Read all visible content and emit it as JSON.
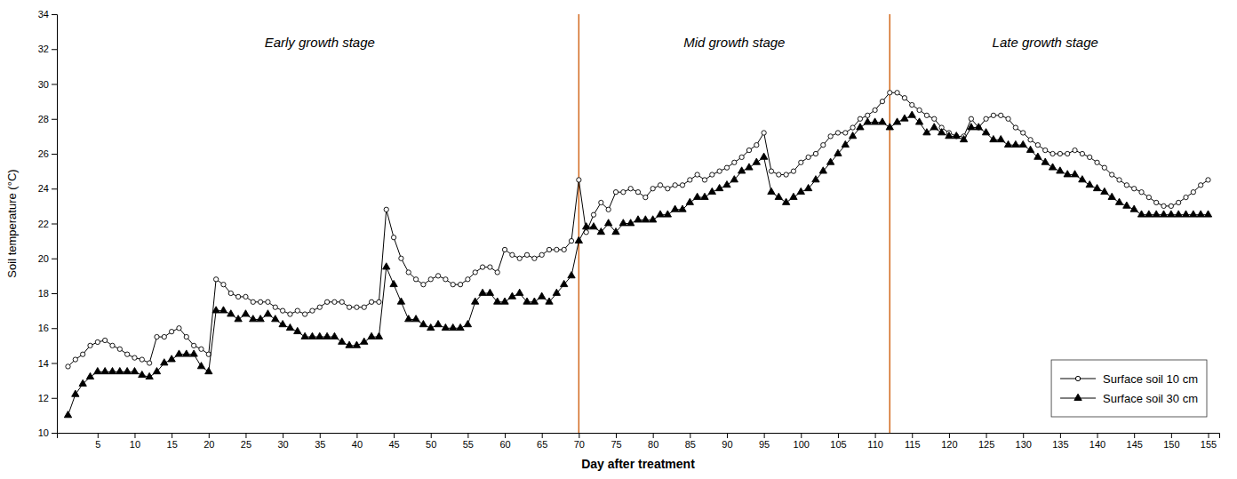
{
  "chart_data": {
    "type": "line",
    "x_label": "Day after treatment",
    "y_label": "Soil temperature (°C)",
    "x": [
      1,
      2,
      3,
      4,
      5,
      6,
      7,
      8,
      9,
      10,
      11,
      12,
      13,
      14,
      15,
      16,
      17,
      18,
      19,
      20,
      21,
      22,
      23,
      24,
      25,
      26,
      27,
      28,
      29,
      30,
      31,
      32,
      33,
      34,
      35,
      36,
      37,
      38,
      39,
      40,
      41,
      42,
      43,
      44,
      45,
      46,
      47,
      48,
      49,
      50,
      51,
      52,
      53,
      54,
      55,
      56,
      57,
      58,
      59,
      60,
      61,
      62,
      63,
      64,
      65,
      66,
      67,
      68,
      69,
      70,
      71,
      72,
      73,
      74,
      75,
      76,
      77,
      78,
      79,
      80,
      81,
      82,
      83,
      84,
      85,
      86,
      87,
      88,
      89,
      90,
      91,
      92,
      93,
      94,
      95,
      96,
      97,
      98,
      99,
      100,
      101,
      102,
      103,
      104,
      105,
      106,
      107,
      108,
      109,
      110,
      111,
      112,
      113,
      114,
      115,
      116,
      117,
      118,
      119,
      120,
      121,
      122,
      123,
      124,
      125,
      126,
      127,
      128,
      129,
      130,
      131,
      132,
      133,
      134,
      135,
      136,
      137,
      138,
      139,
      140,
      141,
      142,
      143,
      144,
      145,
      146,
      147,
      148,
      149,
      150,
      151,
      152,
      153,
      154,
      155
    ],
    "series": [
      {
        "name": "Surface soil 10 cm",
        "color": "#000000",
        "marker": "open-circle",
        "values": [
          13.8,
          14.2,
          14.5,
          15.0,
          15.2,
          15.3,
          15.0,
          14.8,
          14.5,
          14.3,
          14.2,
          14.0,
          15.5,
          15.5,
          15.8,
          16.0,
          15.5,
          15.0,
          14.8,
          14.5,
          18.8,
          18.5,
          18.0,
          17.8,
          17.8,
          17.5,
          17.5,
          17.5,
          17.2,
          17.0,
          16.8,
          17.0,
          16.8,
          17.0,
          17.2,
          17.5,
          17.5,
          17.5,
          17.2,
          17.2,
          17.2,
          17.5,
          17.5,
          22.8,
          21.2,
          20.0,
          19.2,
          18.8,
          18.5,
          18.8,
          19.0,
          18.8,
          18.5,
          18.5,
          18.8,
          19.2,
          19.5,
          19.5,
          19.2,
          20.5,
          20.2,
          20.0,
          20.2,
          20.0,
          20.2,
          20.5,
          20.5,
          20.5,
          21.0,
          24.5,
          21.5,
          22.5,
          23.2,
          22.8,
          23.8,
          23.8,
          24.0,
          23.8,
          23.5,
          24.0,
          24.2,
          24.0,
          24.2,
          24.2,
          24.5,
          24.8,
          24.5,
          24.8,
          25.0,
          25.2,
          25.5,
          25.8,
          26.2,
          26.5,
          27.2,
          25.0,
          24.8,
          24.8,
          25.0,
          25.5,
          25.8,
          26.0,
          26.5,
          27.0,
          27.2,
          27.2,
          27.5,
          28.0,
          28.2,
          28.5,
          29.0,
          29.5,
          29.5,
          29.2,
          28.8,
          28.5,
          28.2,
          28.0,
          27.5,
          27.2,
          27.0,
          27.0,
          28.0,
          27.5,
          28.0,
          28.2,
          28.2,
          28.0,
          27.5,
          27.2,
          26.8,
          26.5,
          26.2,
          26.0,
          26.0,
          26.0,
          26.2,
          26.0,
          25.8,
          25.5,
          25.2,
          24.8,
          24.5,
          24.2,
          24.0,
          23.8,
          23.5,
          23.2,
          23.0,
          23.0,
          23.2,
          23.5,
          23.8,
          24.2,
          24.5
        ]
      },
      {
        "name": "Surface soil 30 cm",
        "color": "#000000",
        "marker": "triangle",
        "values": [
          11.0,
          12.2,
          12.8,
          13.2,
          13.5,
          13.5,
          13.5,
          13.5,
          13.5,
          13.5,
          13.3,
          13.2,
          13.5,
          14.0,
          14.2,
          14.5,
          14.5,
          14.5,
          13.8,
          13.5,
          17.0,
          17.0,
          16.8,
          16.5,
          16.8,
          16.5,
          16.5,
          16.8,
          16.5,
          16.2,
          16.0,
          15.8,
          15.5,
          15.5,
          15.5,
          15.5,
          15.5,
          15.2,
          15.0,
          15.0,
          15.2,
          15.5,
          15.5,
          19.5,
          18.5,
          17.5,
          16.5,
          16.5,
          16.2,
          16.0,
          16.2,
          16.0,
          16.0,
          16.0,
          16.2,
          17.5,
          18.0,
          18.0,
          17.5,
          17.5,
          17.8,
          18.0,
          17.5,
          17.5,
          17.8,
          17.5,
          18.0,
          18.5,
          19.0,
          21.0,
          21.8,
          21.8,
          21.5,
          22.0,
          21.5,
          22.0,
          22.0,
          22.2,
          22.2,
          22.2,
          22.5,
          22.5,
          22.8,
          22.8,
          23.2,
          23.5,
          23.5,
          23.8,
          24.0,
          24.2,
          24.5,
          25.0,
          25.2,
          25.5,
          25.8,
          23.8,
          23.5,
          23.2,
          23.5,
          23.8,
          24.0,
          24.5,
          25.0,
          25.5,
          26.0,
          26.5,
          27.0,
          27.5,
          27.8,
          27.8,
          27.8,
          27.5,
          27.8,
          28.0,
          28.2,
          27.8,
          27.2,
          27.5,
          27.2,
          27.0,
          27.0,
          26.8,
          27.5,
          27.5,
          27.2,
          26.8,
          26.8,
          26.5,
          26.5,
          26.5,
          26.2,
          25.8,
          25.5,
          25.2,
          25.0,
          24.8,
          24.8,
          24.5,
          24.2,
          24.0,
          23.8,
          23.5,
          23.2,
          23.0,
          22.8,
          22.5,
          22.5,
          22.5,
          22.5,
          22.5,
          22.5,
          22.5,
          22.5,
          22.5,
          22.5
        ]
      }
    ],
    "vlines": [
      {
        "x": 70,
        "color": "#D2691E"
      },
      {
        "x": 112,
        "color": "#D2691E"
      }
    ],
    "annotations": [
      {
        "text": "Early growth stage",
        "x": 35,
        "y": 32.8
      },
      {
        "text": "Mid growth stage",
        "x": 91,
        "y": 32.8
      },
      {
        "text": "Late growth stage",
        "x": 133,
        "y": 32.8
      }
    ],
    "xlim": [
      -0.5,
      156.5
    ],
    "ylim": [
      10,
      34
    ],
    "xticks": [
      5,
      10,
      15,
      20,
      25,
      30,
      35,
      40,
      45,
      50,
      55,
      60,
      65,
      70,
      75,
      80,
      85,
      90,
      95,
      100,
      105,
      110,
      115,
      120,
      125,
      130,
      135,
      140,
      145,
      150,
      155
    ],
    "yticks": [
      10,
      12,
      14,
      16,
      18,
      20,
      22,
      24,
      26,
      28,
      30,
      32,
      34
    ],
    "grid": false,
    "legend": "lower right"
  }
}
